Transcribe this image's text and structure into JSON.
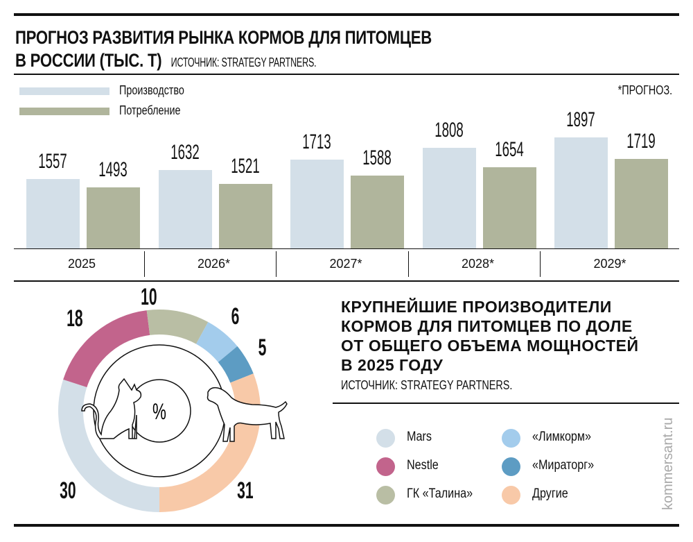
{
  "header": {
    "title_line1": "ПРОГНОЗ РАЗВИТИЯ РЫНКА КОРМОВ ДЛЯ ПИТОМЦЕВ",
    "title_line2": "В РОССИИ (ТЫС. Т)",
    "source": "ИСТОЧНИК: STRATEGY PARTNERS.",
    "forecast_note": "*ПРОГНОЗ."
  },
  "chart_data": [
    {
      "type": "bar",
      "categories": [
        "2025",
        "2026*",
        "2027*",
        "2028*",
        "2029*"
      ],
      "series": [
        {
          "name": "Производство",
          "color": "#d3dfe8",
          "values": [
            1557,
            1632,
            1713,
            1808,
            1897
          ]
        },
        {
          "name": "Потребление",
          "color": "#b0b59c",
          "values": [
            1493,
            1521,
            1588,
            1654,
            1719
          ]
        }
      ],
      "legend": "top-left",
      "grid": false
    },
    {
      "type": "pie",
      "donut": true,
      "center_label": "%",
      "title": "КРУПНЕЙШИЕ ПРОИЗВОДИТЕЛИ КОРМОВ ДЛЯ ПИТОМЦЕВ ПО ДОЛЕ ОТ ОБЩЕГО ОБЪЕМА МОЩНОСТЕЙ В 2025 ГОДУ",
      "title_lines": [
        "КРУПНЕЙШИЕ ПРОИЗВОДИТЕЛИ",
        "КОРМОВ ДЛЯ ПИТОМЦЕВ ПО ДОЛЕ",
        "ОТ ОБЩЕГО ОБЪЕМА МОЩНОСТЕЙ",
        "В 2025 ГОДУ"
      ],
      "source": "ИСТОЧНИК: STRATEGY PARTNERS.",
      "slices": [
        {
          "label": "Mars",
          "value": 30,
          "color": "#d3dfe8"
        },
        {
          "label": "Nestle",
          "value": 18,
          "color": "#c2648c"
        },
        {
          "label": "ГК «Талина»",
          "value": 10,
          "color": "#b9bea4"
        },
        {
          "label": "«Лимкорм»",
          "value": 6,
          "color": "#a3ccec"
        },
        {
          "label": "«Мираторг»",
          "value": 5,
          "color": "#5d9cc3"
        },
        {
          "label": "Другие",
          "value": 31,
          "color": "#f8c9a8"
        }
      ],
      "legend": "right"
    }
  ],
  "watermark": "kommersant.ru"
}
